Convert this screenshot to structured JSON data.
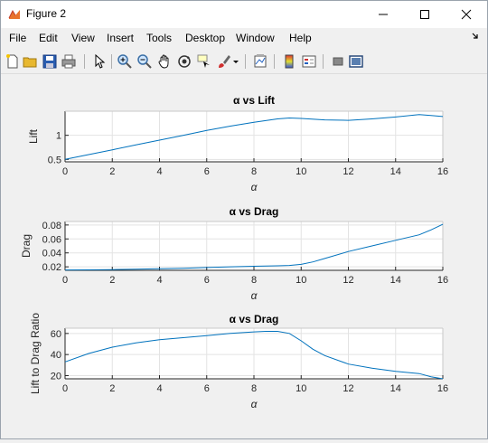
{
  "window": {
    "title": "Figure 2"
  },
  "menu": {
    "items": [
      "File",
      "Edit",
      "View",
      "Insert",
      "Tools",
      "Desktop",
      "Window",
      "Help"
    ]
  },
  "toolbar": {
    "icons": [
      "new-figure-icon",
      "open-file-icon",
      "save-icon",
      "print-icon",
      "select-arrow-icon",
      "zoom-in-icon",
      "zoom-out-icon",
      "pan-icon",
      "rotate-3d-icon",
      "data-cursor-icon",
      "brush-icon",
      "link-plot-icon",
      "colorbar-icon",
      "legend-icon",
      "hide-plot-tools-icon",
      "show-plot-tools-icon"
    ]
  },
  "chart_data": [
    {
      "type": "line",
      "title": "α vs Lift",
      "xlabel": "α",
      "ylabel": "Lift",
      "xlim": [
        0,
        16
      ],
      "ylim": [
        0.45,
        1.5
      ],
      "x_ticks": [
        0,
        2,
        4,
        6,
        8,
        10,
        12,
        14,
        16
      ],
      "y_ticks": [
        0.5,
        1
      ],
      "grid": true,
      "series": [
        {
          "x": [
            0,
            1,
            2,
            3,
            4,
            5,
            6,
            7,
            8,
            9,
            9.5,
            10,
            11,
            12,
            13,
            14,
            14.8,
            15,
            15.5,
            16
          ],
          "values": [
            0.5,
            0.6,
            0.7,
            0.8,
            0.9,
            1.0,
            1.1,
            1.19,
            1.27,
            1.34,
            1.36,
            1.35,
            1.32,
            1.31,
            1.34,
            1.38,
            1.42,
            1.43,
            1.41,
            1.39
          ]
        }
      ]
    },
    {
      "type": "line",
      "title": "α vs Drag",
      "xlabel": "α",
      "ylabel": "Drag",
      "xlim": [
        0,
        16
      ],
      "ylim": [
        0.015,
        0.085
      ],
      "x_ticks": [
        0,
        2,
        4,
        6,
        8,
        10,
        12,
        14,
        16
      ],
      "y_ticks": [
        0.02,
        0.04,
        0.06,
        0.08
      ],
      "grid": true,
      "series": [
        {
          "x": [
            0,
            1,
            2,
            3,
            4,
            5,
            6,
            7,
            8,
            9,
            9.5,
            10,
            10.5,
            11,
            12,
            13,
            14,
            15,
            15.5,
            16
          ],
          "values": [
            0.0155,
            0.0157,
            0.016,
            0.0165,
            0.0172,
            0.018,
            0.019,
            0.02,
            0.0208,
            0.0215,
            0.022,
            0.0235,
            0.027,
            0.032,
            0.042,
            0.05,
            0.058,
            0.066,
            0.073,
            0.081
          ]
        }
      ]
    },
    {
      "type": "line",
      "title": "α vs Drag",
      "xlabel": "α",
      "ylabel": "Lift to Drag Ratio",
      "xlim": [
        0,
        16
      ],
      "ylim": [
        17,
        65
      ],
      "x_ticks": [
        0,
        2,
        4,
        6,
        8,
        10,
        12,
        14,
        16
      ],
      "y_ticks": [
        20,
        40,
        60
      ],
      "grid": true,
      "series": [
        {
          "x": [
            0,
            1,
            2,
            3,
            4,
            5,
            6,
            7,
            8,
            8.5,
            9,
            9.5,
            10,
            10.5,
            11,
            12,
            13,
            14,
            15,
            15.5,
            16
          ],
          "values": [
            33,
            41,
            47,
            51,
            54,
            56,
            58,
            60,
            61.5,
            62,
            62,
            60,
            53,
            45,
            39,
            31,
            27,
            24,
            22,
            19,
            17
          ]
        }
      ]
    }
  ]
}
